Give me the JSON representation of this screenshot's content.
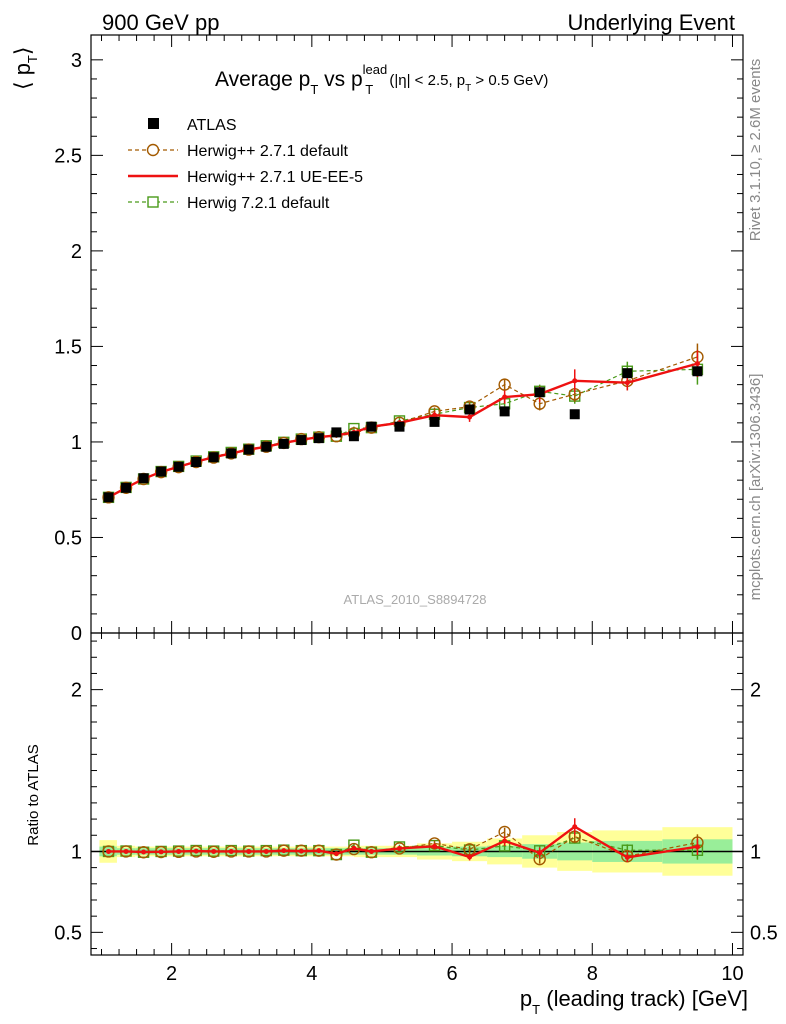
{
  "header": {
    "left": "900 GeV pp",
    "right": "Underlying Event"
  },
  "title": {
    "prefix": "Average p",
    "sub1": "T",
    "mid": " vs p",
    "sup": "lead",
    "sub2": "T",
    "cut_pre": " (|η| < 2.5, p",
    "cut_sub": "T",
    "cut_post": " > 0.5 GeV)"
  },
  "watermark": "ATLAS_2010_S8894728",
  "side_labels": {
    "top": "Rivet 3.1.10, ≥ 2.6M events",
    "bottom": "mcplots.cern.ch [arXiv:1306.3436]"
  },
  "axes": {
    "ylabel_main": "⟨ p",
    "ylabel_main_sub": "T",
    "ylabel_main_close": "⟩",
    "ylabel_ratio": "Ratio to ATLAS",
    "xlabel_p": "p",
    "xlabel_sub": "T",
    "xlabel_rest": " (leading track) [GeV]"
  },
  "colors": {
    "atlas": "#000000",
    "herwig_default": "#a35a00",
    "herwig_ue": "#ee1111",
    "herwig72": "#4a9b1a",
    "band_outer": "#ffff99",
    "band_inner": "#99ee99"
  },
  "chart_data": {
    "type": "scatter",
    "xlim": [
      0.85,
      10.15
    ],
    "ylim_main": [
      0,
      3.13
    ],
    "ylim_ratio": [
      0.36,
      2.35
    ],
    "xticks": [
      2,
      4,
      6,
      8,
      10
    ],
    "yticks_main": [
      0.5,
      1,
      1.5,
      2,
      2.5,
      3
    ],
    "yticks_main_labels": [
      "0.5",
      "1",
      "1.5",
      "2",
      "2.5",
      "3"
    ],
    "yticks_ratio": [
      0.5,
      1,
      2
    ],
    "yticks_ratio_labels": [
      "0.5",
      "1",
      "2"
    ],
    "legend": [
      {
        "key": "atlas",
        "label": "ATLAS"
      },
      {
        "key": "herwig_default",
        "label": "Herwig++ 2.7.1 default"
      },
      {
        "key": "herwig_ue",
        "label": "Herwig++ 2.7.1 UE-EE-5"
      },
      {
        "key": "herwig72",
        "label": "Herwig 7.2.1 default"
      }
    ],
    "x": [
      1.1,
      1.35,
      1.6,
      1.85,
      2.1,
      2.35,
      2.6,
      2.85,
      3.1,
      3.35,
      3.6,
      3.85,
      4.1,
      4.35,
      4.6,
      4.85,
      5.25,
      5.75,
      6.25,
      6.75,
      7.25,
      7.75,
      8.5,
      9.5
    ],
    "series": [
      {
        "key": "atlas",
        "name": "ATLAS",
        "values": [
          0.71,
          0.76,
          0.81,
          0.845,
          0.87,
          0.895,
          0.92,
          0.94,
          0.96,
          0.975,
          0.99,
          1.01,
          1.02,
          1.05,
          1.03,
          1.08,
          1.08,
          1.105,
          1.17,
          1.16,
          1.26,
          1.145,
          1.36,
          1.37
        ]
      },
      {
        "key": "herwig_default",
        "name": "Herwig++ 2.7.1 default",
        "values": [
          0.71,
          0.76,
          0.806,
          0.842,
          0.868,
          0.895,
          0.918,
          0.94,
          0.96,
          0.975,
          0.995,
          1.015,
          1.025,
          1.03,
          1.045,
          1.075,
          1.1,
          1.16,
          1.185,
          1.3,
          1.2,
          1.25,
          1.32,
          1.445
        ],
        "errors": [
          0.005,
          0.005,
          0.005,
          0.005,
          0.005,
          0.005,
          0.005,
          0.005,
          0.005,
          0.005,
          0.005,
          0.005,
          0.006,
          0.008,
          0.01,
          0.012,
          0.015,
          0.02,
          0.025,
          0.03,
          0.035,
          0.04,
          0.05,
          0.07
        ]
      },
      {
        "key": "herwig_ue",
        "name": "Herwig++ 2.7.1 UE-EE-5",
        "values": [
          0.71,
          0.76,
          0.807,
          0.843,
          0.87,
          0.897,
          0.92,
          0.94,
          0.96,
          0.975,
          0.995,
          1.012,
          1.025,
          1.035,
          1.05,
          1.08,
          1.1,
          1.14,
          1.13,
          1.235,
          1.25,
          1.32,
          1.31,
          1.41
        ],
        "errors": [
          0.005,
          0.005,
          0.005,
          0.005,
          0.005,
          0.005,
          0.005,
          0.005,
          0.005,
          0.005,
          0.005,
          0.005,
          0.006,
          0.008,
          0.01,
          0.012,
          0.015,
          0.02,
          0.025,
          0.035,
          0.04,
          0.06,
          0.04,
          0.07
        ]
      },
      {
        "key": "herwig72",
        "name": "Herwig 7.2.1 default",
        "values": [
          0.71,
          0.762,
          0.806,
          0.845,
          0.872,
          0.9,
          0.922,
          0.945,
          0.962,
          0.98,
          0.998,
          1.015,
          1.025,
          1.03,
          1.07,
          1.075,
          1.11,
          1.145,
          1.18,
          1.2,
          1.265,
          1.24,
          1.37,
          1.38
        ],
        "errors": [
          0.005,
          0.005,
          0.005,
          0.005,
          0.005,
          0.005,
          0.005,
          0.005,
          0.005,
          0.005,
          0.005,
          0.005,
          0.006,
          0.008,
          0.01,
          0.012,
          0.015,
          0.02,
          0.025,
          0.03,
          0.035,
          0.04,
          0.05,
          0.08
        ]
      }
    ],
    "bands": [
      {
        "x0": 0.97,
        "x1": 1.22,
        "inner": 0.03,
        "outer": 0.07
      },
      {
        "x0": 1.22,
        "x1": 1.48,
        "inner": 0.02,
        "outer": 0.035
      },
      {
        "x0": 1.48,
        "x1": 2.35,
        "inner": 0.02,
        "outer": 0.03
      },
      {
        "x0": 2.35,
        "x1": 3.6,
        "inner": 0.02,
        "outer": 0.03
      },
      {
        "x0": 3.6,
        "x1": 4.6,
        "inner": 0.02,
        "outer": 0.03
      },
      {
        "x0": 4.6,
        "x1": 5.5,
        "inner": 0.02,
        "outer": 0.035
      },
      {
        "x0": 5.5,
        "x1": 6.0,
        "inner": 0.025,
        "outer": 0.05
      },
      {
        "x0": 6.0,
        "x1": 6.5,
        "inner": 0.03,
        "outer": 0.06
      },
      {
        "x0": 6.5,
        "x1": 7.0,
        "inner": 0.035,
        "outer": 0.08
      },
      {
        "x0": 7.0,
        "x1": 7.5,
        "inner": 0.045,
        "outer": 0.1
      },
      {
        "x0": 7.5,
        "x1": 8.0,
        "inner": 0.055,
        "outer": 0.12
      },
      {
        "x0": 8.0,
        "x1": 9.0,
        "inner": 0.065,
        "outer": 0.13
      },
      {
        "x0": 9.0,
        "x1": 10.0,
        "inner": 0.075,
        "outer": 0.15
      }
    ]
  }
}
